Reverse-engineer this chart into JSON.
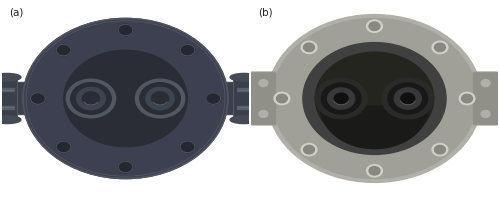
{
  "figsize": [
    5.0,
    1.97
  ],
  "dpi": 100,
  "background_color": "#ffffff",
  "label_a": "(a)",
  "label_b": "(b)",
  "label_fontsize": 7.5,
  "label_color": "#222222",
  "disc_a_color": "#3c4050",
  "disc_a_edge": "#50555f",
  "disc_a_dark": "#2a2d35",
  "disc_a_mid": "#484d58",
  "inner_oval_color": "#2a2d35",
  "ring_outer_a": "#525860",
  "ring_mid_a": "#2a2d35",
  "ring_inner_a": "#3e4450",
  "bolt_hole_a": "#252830",
  "side_port_a": "#3a3f4a",
  "horizontal_bar_a": "#3a3f4a",
  "disc_b_outer": "#a0a090",
  "disc_b_mid": "#888878",
  "disc_b_inner_dark": "#3a3a35",
  "disc_b_center": "#252520",
  "ring_outer_b": "#303030",
  "ring_mid_b": "#1a1a1a",
  "ring_inner_b": "#404040",
  "bolt_hole_b_color": "#b8b8b0",
  "side_port_b": "#909088"
}
